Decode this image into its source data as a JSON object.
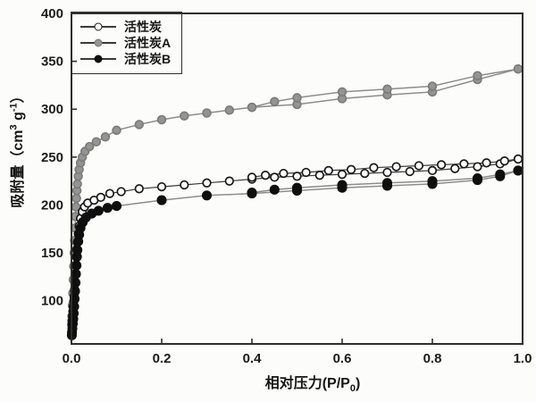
{
  "figure": {
    "background": "#fcfcfa",
    "frame_color": "#2e2e2e",
    "tick_color": "#2e2e2e",
    "text_color": "#161616"
  },
  "axis_labels": {
    "y": {
      "pre": "吸附量（cm",
      "sup1": "3",
      "mid": " g",
      "sup2": "-1",
      "end": "）"
    },
    "x": {
      "main": "相对压力(P/P",
      "sub": "0",
      "end": ")"
    }
  },
  "legend": {
    "line_color": "#3a3a3a"
  },
  "chart_data": {
    "type": "line",
    "title": "",
    "xlabel": "相对压力(P/P0)",
    "ylabel": "吸附量 (cm3 g-1)",
    "xlim": [
      0,
      1.0
    ],
    "ylim": [
      55,
      400
    ],
    "xticks": [
      0,
      0.2,
      0.4,
      0.6,
      0.8,
      1.0
    ],
    "xtick_labels": [
      "0.0",
      "0.2",
      "0.4",
      "0.6",
      "0.8",
      "1.0"
    ],
    "yticks": [
      100,
      150,
      200,
      250,
      300,
      350,
      400
    ],
    "ytick_labels": [
      "100",
      "150",
      "200",
      "250",
      "300",
      "350",
      "400"
    ],
    "grid": false,
    "legend_position": "upper-left",
    "note": "Each series is an N2 adsorption-desorption isotherm with two branches forming a hysteresis loop",
    "series": [
      {
        "id": "activated-carbon-a",
        "name": "活性炭A",
        "marker": "filled-circle",
        "marker_fill": "#949494",
        "marker_edge": "#7c7c7c",
        "marker_radius": 4.4,
        "line_color": "#8d8d8d",
        "line_width": 1.5,
        "branches": {
          "adsorption": [
            [
              0.0008,
              76
            ],
            [
              0.0012,
              84
            ],
            [
              0.002,
              95
            ],
            [
              0.003,
              108
            ],
            [
              0.004,
              122
            ],
            [
              0.005,
              136
            ],
            [
              0.006,
              150
            ],
            [
              0.007,
              163
            ],
            [
              0.008,
              176
            ],
            [
              0.009,
              188
            ],
            [
              0.01,
              198
            ],
            [
              0.011,
              207
            ],
            [
              0.012,
              215
            ],
            [
              0.013,
              222
            ],
            [
              0.015,
              230
            ],
            [
              0.017,
              237
            ],
            [
              0.02,
              244
            ],
            [
              0.024,
              250
            ],
            [
              0.03,
              256
            ],
            [
              0.04,
              261
            ],
            [
              0.055,
              266
            ],
            [
              0.075,
              271
            ],
            [
              0.1,
              278
            ],
            [
              0.15,
              284
            ],
            [
              0.2,
              289
            ],
            [
              0.25,
              293
            ],
            [
              0.3,
              296
            ],
            [
              0.35,
              299
            ],
            [
              0.4,
              302
            ],
            [
              0.5,
              305
            ],
            [
              0.6,
              311
            ],
            [
              0.7,
              315
            ],
            [
              0.8,
              318
            ],
            [
              0.9,
              331
            ],
            [
              0.99,
              342
            ]
          ],
          "desorption": [
            [
              0.99,
              342
            ],
            [
              0.9,
              335
            ],
            [
              0.8,
              324
            ],
            [
              0.7,
              321
            ],
            [
              0.6,
              318
            ],
            [
              0.5,
              312
            ],
            [
              0.45,
              308
            ],
            [
              0.4,
              302
            ]
          ]
        }
      },
      {
        "id": "activated-carbon",
        "name": "活性炭",
        "marker": "open-circle",
        "marker_fill": "#ffffff",
        "marker_edge": "#1a1a1a",
        "marker_radius": 4.3,
        "line_color": "#3c3c3c",
        "line_width": 1.2,
        "branches": {
          "adsorption": [
            [
              0.0008,
              75
            ],
            [
              0.0012,
              79
            ],
            [
              0.002,
              84
            ],
            [
              0.003,
              89
            ],
            [
              0.004,
              94
            ],
            [
              0.005,
              99
            ],
            [
              0.006,
              105
            ],
            [
              0.007,
              112
            ],
            [
              0.008,
              120
            ],
            [
              0.009,
              128
            ],
            [
              0.01,
              137
            ],
            [
              0.011,
              146
            ],
            [
              0.012,
              154
            ],
            [
              0.013,
              161
            ],
            [
              0.015,
              170
            ],
            [
              0.017,
              178
            ],
            [
              0.02,
              186
            ],
            [
              0.024,
              193
            ],
            [
              0.029,
              198
            ],
            [
              0.036,
              202
            ],
            [
              0.05,
              205
            ],
            [
              0.065,
              208
            ],
            [
              0.085,
              212
            ],
            [
              0.11,
              214
            ],
            [
              0.15,
              217
            ],
            [
              0.2,
              219
            ],
            [
              0.25,
              221
            ],
            [
              0.3,
              223
            ],
            [
              0.35,
              225
            ],
            [
              0.4,
              227
            ],
            [
              0.45,
              229
            ],
            [
              0.5,
              230
            ],
            [
              0.55,
              231
            ],
            [
              0.6,
              232
            ],
            [
              0.65,
              233
            ],
            [
              0.7,
              234
            ],
            [
              0.75,
              235
            ],
            [
              0.8,
              236
            ],
            [
              0.85,
              238
            ],
            [
              0.9,
              240
            ],
            [
              0.95,
              243
            ],
            [
              0.99,
              248
            ]
          ],
          "desorption": [
            [
              0.99,
              248
            ],
            [
              0.96,
              246
            ],
            [
              0.92,
              244
            ],
            [
              0.87,
              243
            ],
            [
              0.82,
              242
            ],
            [
              0.77,
              241
            ],
            [
              0.72,
              240
            ],
            [
              0.67,
              239
            ],
            [
              0.62,
              237
            ],
            [
              0.57,
              236
            ],
            [
              0.52,
              234
            ],
            [
              0.47,
              233
            ],
            [
              0.43,
              231
            ],
            [
              0.4,
              229
            ]
          ]
        }
      },
      {
        "id": "activated-carbon-b",
        "name": "活性炭B",
        "marker": "filled-circle",
        "marker_fill": "#0f0f0f",
        "marker_edge": "#0f0f0f",
        "marker_radius": 4.7,
        "line_color": "#8d8d8d",
        "line_width": 1.5,
        "branches": {
          "adsorption": [
            [
              0.0008,
              64
            ],
            [
              0.0012,
              67
            ],
            [
              0.002,
              71
            ],
            [
              0.003,
              76
            ],
            [
              0.004,
              81
            ],
            [
              0.005,
              87
            ],
            [
              0.006,
              94
            ],
            [
              0.007,
              102
            ],
            [
              0.008,
              110
            ],
            [
              0.009,
              119
            ],
            [
              0.01,
              128
            ],
            [
              0.011,
              137
            ],
            [
              0.012,
              146
            ],
            [
              0.013,
              153
            ],
            [
              0.015,
              162
            ],
            [
              0.017,
              169
            ],
            [
              0.02,
              176
            ],
            [
              0.025,
              182
            ],
            [
              0.032,
              187
            ],
            [
              0.045,
              191
            ],
            [
              0.06,
              194
            ],
            [
              0.08,
              197
            ],
            [
              0.1,
              199
            ],
            [
              0.2,
              205
            ],
            [
              0.3,
              210
            ],
            [
              0.4,
              212
            ],
            [
              0.5,
              215
            ],
            [
              0.6,
              218
            ],
            [
              0.7,
              220
            ],
            [
              0.8,
              222
            ],
            [
              0.9,
              226
            ],
            [
              0.95,
              230
            ],
            [
              0.99,
              236
            ]
          ],
          "desorption": [
            [
              0.99,
              236
            ],
            [
              0.95,
              232
            ],
            [
              0.9,
              228
            ],
            [
              0.8,
              225
            ],
            [
              0.7,
              223
            ],
            [
              0.6,
              221
            ],
            [
              0.5,
              218
            ],
            [
              0.45,
              216
            ],
            [
              0.4,
              213
            ]
          ]
        }
      }
    ]
  }
}
